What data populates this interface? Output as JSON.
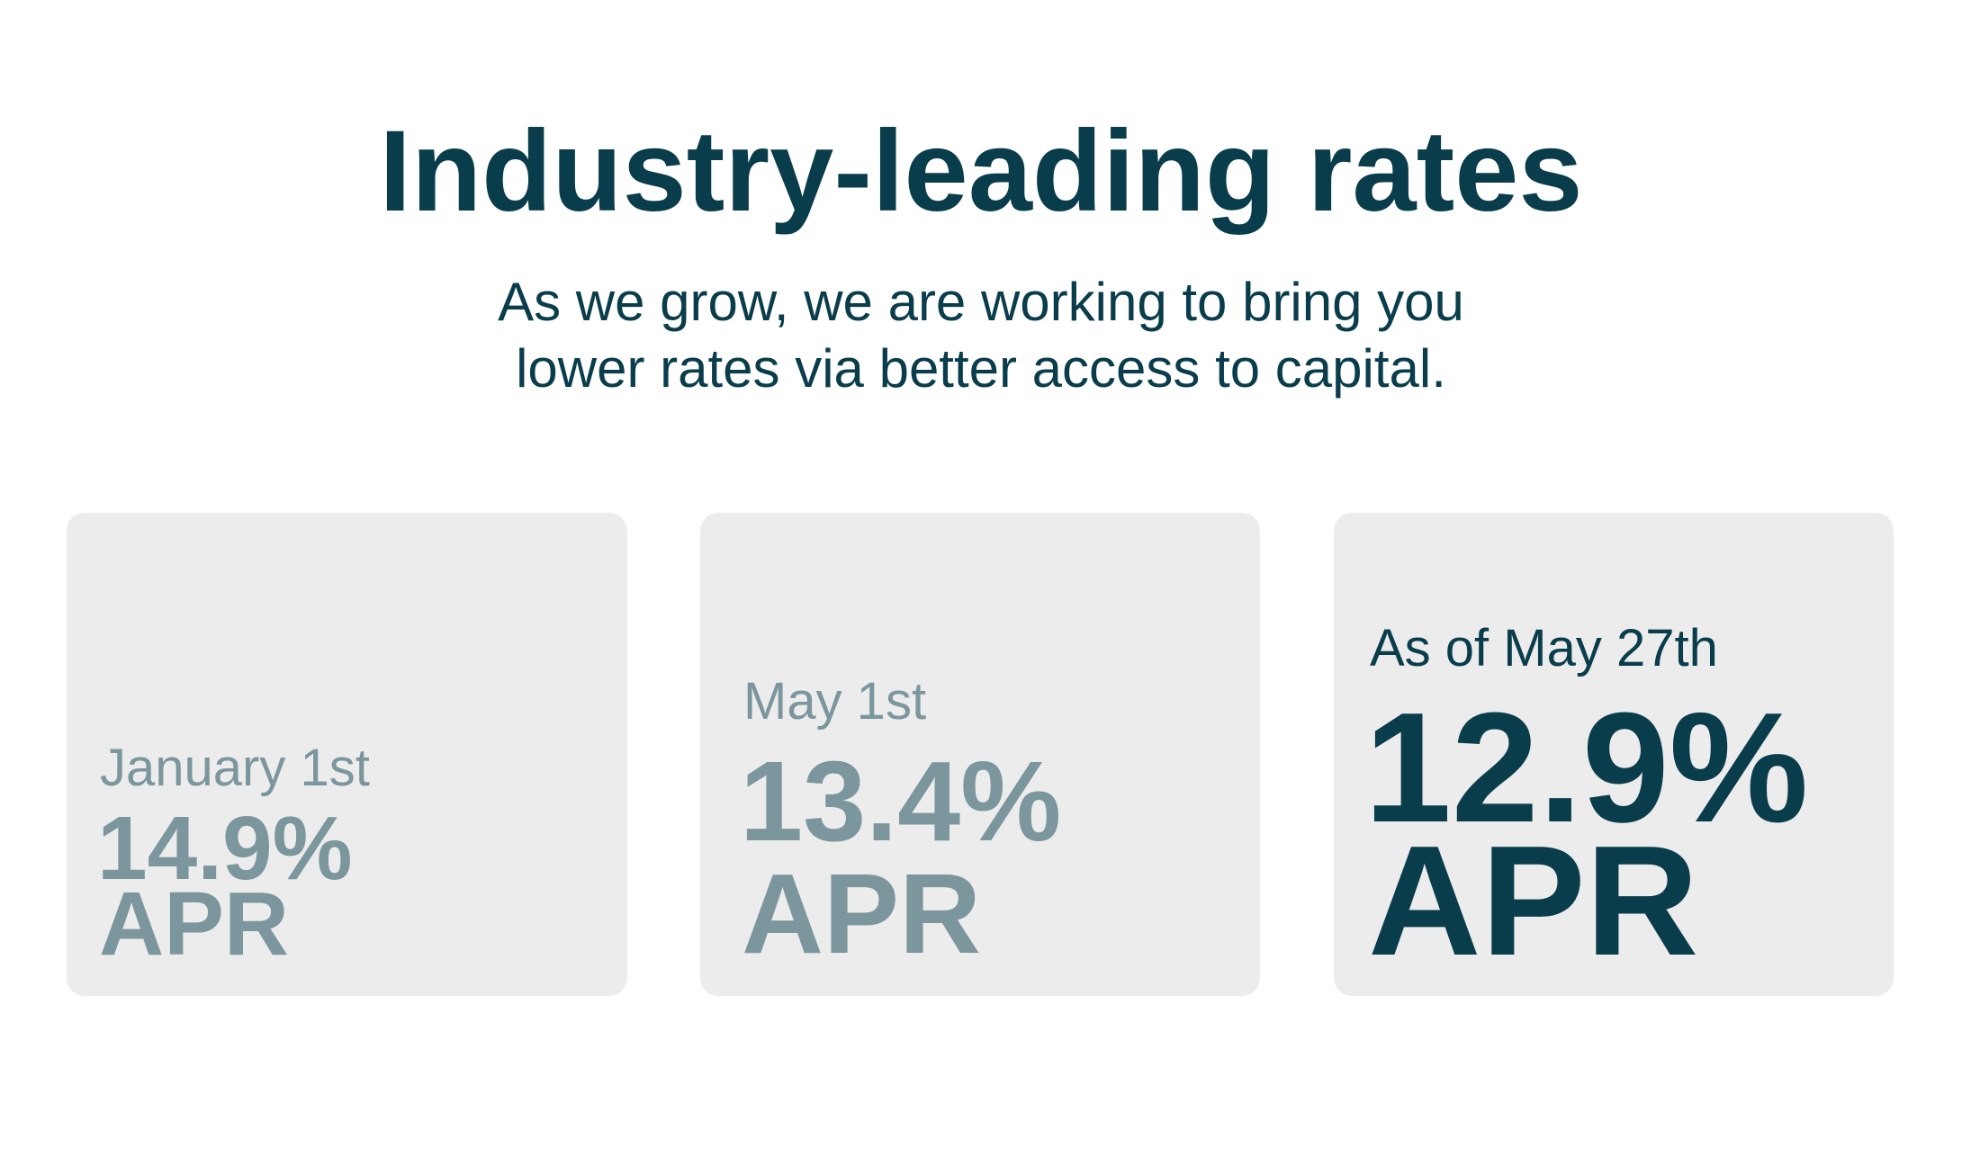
{
  "header": {
    "title": "Industry-leading rates",
    "subtitle_lines": [
      "As we grow, we are working to bring you",
      "lower rates via better access to capital."
    ]
  },
  "cards": [
    {
      "date": "January 1st",
      "rate": "14.9%",
      "unit": "APR"
    },
    {
      "date": "May 1st",
      "rate": "13.4%",
      "unit": "APR"
    },
    {
      "date": "As of May 27th",
      "rate": "12.9%",
      "unit": "APR"
    }
  ]
}
